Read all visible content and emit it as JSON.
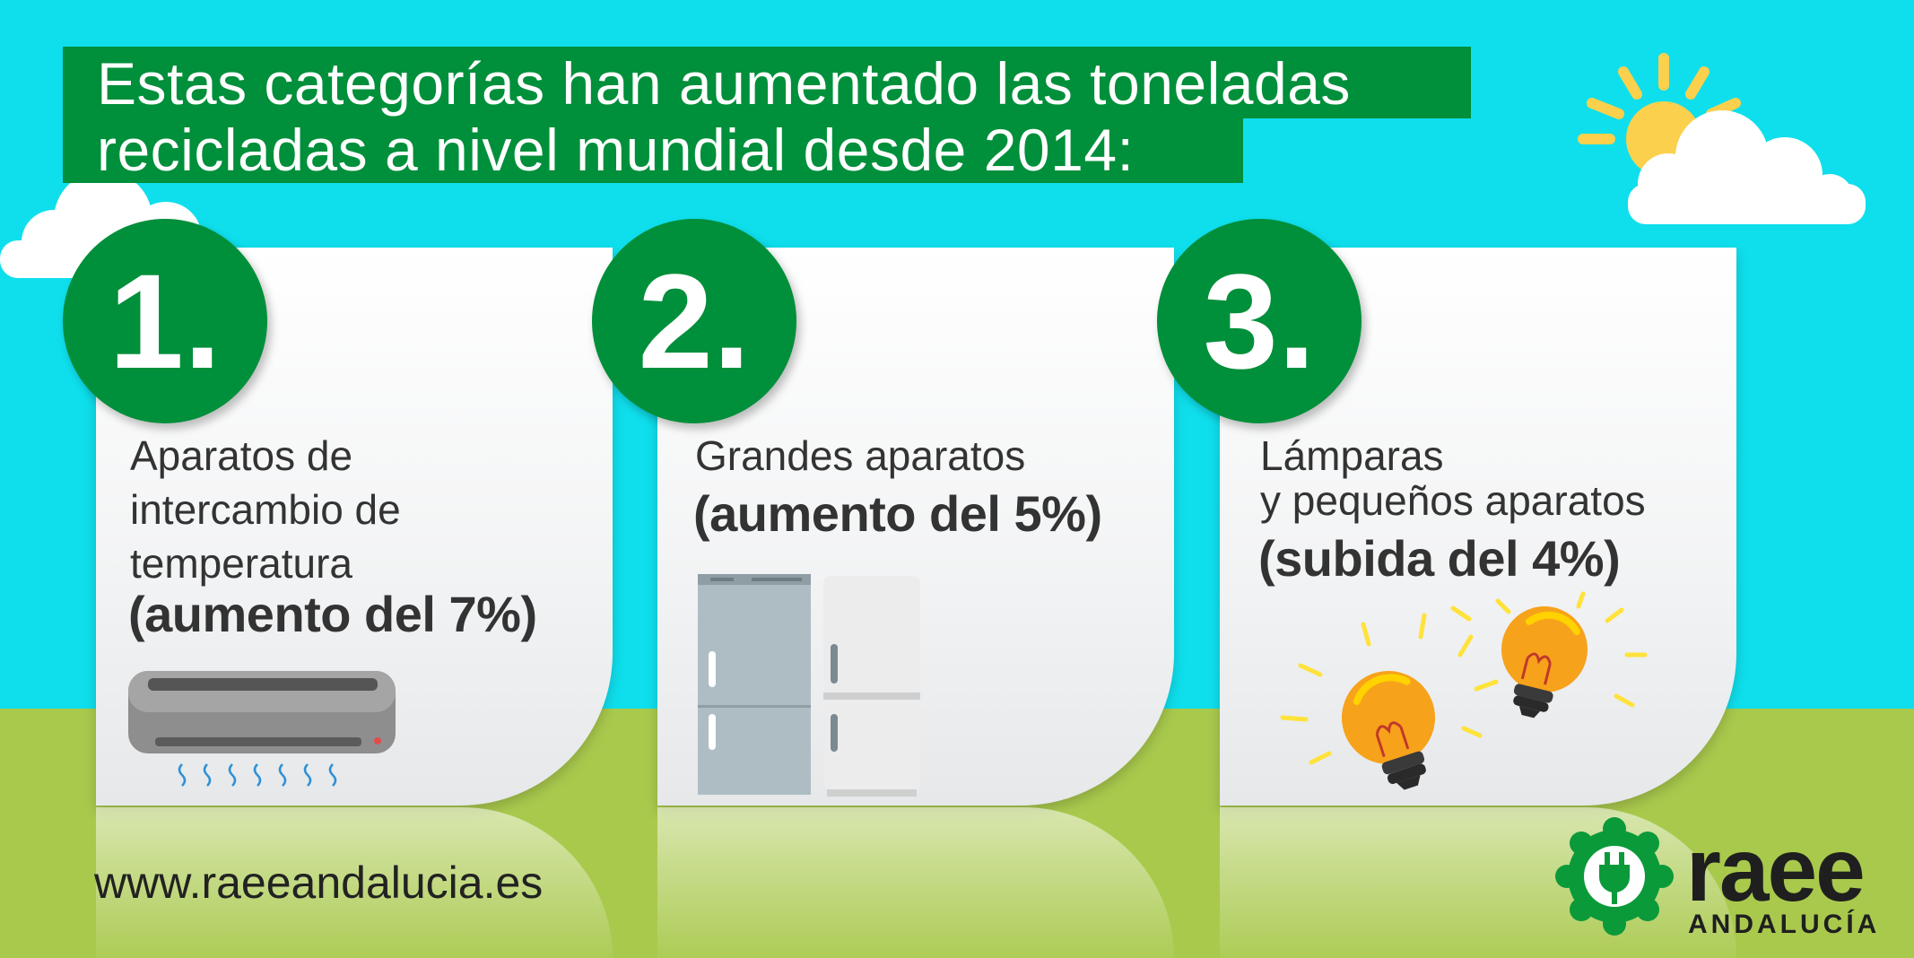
{
  "title": {
    "line1": "Estas categorías han aumentado las toneladas",
    "line2": "recicladas a nivel mundial desde 2014:"
  },
  "cards": [
    {
      "number": "1.",
      "lines": [
        "Aparatos de",
        "intercambio de",
        "temperatura"
      ],
      "highlight": "(aumento del 7%)",
      "icon": "air-conditioner-icon"
    },
    {
      "number": "2.",
      "lines": [
        "Grandes aparatos"
      ],
      "highlight": "(aumento del 5%)",
      "icon": "refrigerators-icon"
    },
    {
      "number": "3.",
      "lines": [
        "Lámparas",
        "y pequeños aparatos"
      ],
      "highlight": "(subida del 4%)",
      "icon": "light-bulbs-icon"
    }
  ],
  "footer": {
    "website": "www.raeeandalucia.es"
  },
  "logo": {
    "name": "raee",
    "subtitle": "ANDALUCÍA",
    "icon": "plug-gear-icon"
  },
  "colors": {
    "sky": "#0fdfec",
    "grass": "#a9c94d",
    "brand_green": "#008f3a",
    "text_dark": "#333333",
    "bulb_yellow": "#ffd200",
    "bulb_orange": "#f7a21b"
  }
}
